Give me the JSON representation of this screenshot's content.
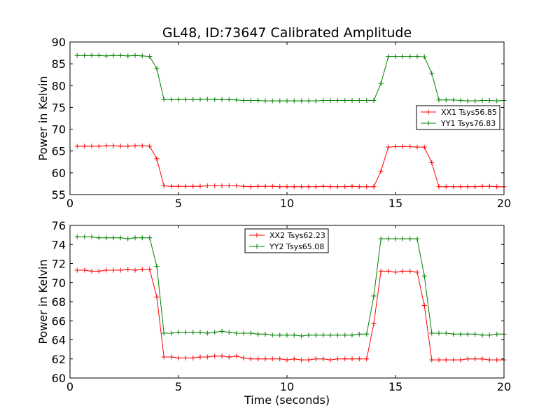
{
  "figure_title": "GL48, ID:73647 Calibrated Amplitude",
  "colors": {
    "red": "#ff0000",
    "green": "#008000"
  },
  "chart_data": [
    {
      "type": "line",
      "title": "GL48, ID:73647 Calibrated Amplitude",
      "xlabel": "",
      "ylabel": "Power in Kelvin",
      "xlim": [
        0,
        20
      ],
      "ylim": [
        55,
        90
      ],
      "xticks": [
        "0",
        "5",
        "10",
        "15",
        "20"
      ],
      "yticks": [
        "55",
        "60",
        "65",
        "70",
        "75",
        "80",
        "85",
        "90"
      ],
      "grid": false,
      "legend_position": "right",
      "x": [
        0.33,
        0.67,
        1.0,
        1.33,
        1.67,
        2.0,
        2.33,
        2.67,
        3.0,
        3.33,
        3.67,
        4.0,
        4.33,
        4.67,
        5.0,
        5.33,
        5.67,
        6.0,
        6.33,
        6.67,
        7.0,
        7.33,
        7.67,
        8.0,
        8.33,
        8.67,
        9.0,
        9.33,
        9.67,
        10.0,
        10.33,
        10.67,
        11.0,
        11.33,
        11.67,
        12.0,
        12.33,
        12.67,
        13.0,
        13.33,
        13.67,
        14.0,
        14.33,
        14.67,
        15.0,
        15.33,
        15.67,
        16.0,
        16.33,
        16.67,
        17.0,
        17.33,
        17.67,
        18.0,
        18.33,
        18.67,
        19.0,
        19.33,
        19.67,
        20.0
      ],
      "series": [
        {
          "name": "XX1 Tsys56.85",
          "color": "#ff0000",
          "values": [
            66.1,
            66.1,
            66.1,
            66.1,
            66.2,
            66.2,
            66.1,
            66.1,
            66.2,
            66.2,
            66.1,
            63.2,
            57.0,
            56.9,
            56.9,
            56.9,
            56.9,
            56.9,
            57.0,
            57.0,
            57.0,
            57.0,
            57.0,
            56.9,
            56.8,
            56.9,
            56.9,
            56.9,
            56.8,
            56.8,
            56.8,
            56.8,
            56.8,
            56.8,
            56.9,
            56.8,
            56.8,
            56.8,
            56.9,
            56.8,
            56.8,
            56.8,
            60.4,
            65.9,
            66.0,
            66.0,
            66.0,
            65.9,
            65.9,
            62.3,
            56.8,
            56.8,
            56.8,
            56.8,
            56.8,
            56.8,
            56.9,
            56.9,
            56.8,
            56.8
          ]
        },
        {
          "name": "YY1 Tsys76.83",
          "color": "#008000",
          "values": [
            86.9,
            86.9,
            86.9,
            86.9,
            86.8,
            86.9,
            86.9,
            86.8,
            86.9,
            86.8,
            86.7,
            83.9,
            76.8,
            76.8,
            76.8,
            76.8,
            76.8,
            76.8,
            76.9,
            76.8,
            76.8,
            76.8,
            76.7,
            76.6,
            76.6,
            76.6,
            76.5,
            76.5,
            76.5,
            76.5,
            76.5,
            76.5,
            76.5,
            76.5,
            76.6,
            76.6,
            76.6,
            76.6,
            76.6,
            76.6,
            76.6,
            76.6,
            80.5,
            86.7,
            86.7,
            86.7,
            86.7,
            86.7,
            86.6,
            82.8,
            76.7,
            76.7,
            76.7,
            76.6,
            76.5,
            76.5,
            76.6,
            76.6,
            76.5,
            76.6
          ]
        }
      ]
    },
    {
      "type": "line",
      "title": "",
      "xlabel": "Time (seconds)",
      "ylabel": "Power in Kelvin",
      "xlim": [
        0,
        20
      ],
      "ylim": [
        60,
        76
      ],
      "xticks": [
        "0",
        "5",
        "10",
        "15",
        "20"
      ],
      "yticks": [
        "60",
        "62",
        "64",
        "66",
        "68",
        "70",
        "72",
        "74",
        "76"
      ],
      "grid": false,
      "legend_position": "top-center",
      "x": [
        0.33,
        0.67,
        1.0,
        1.33,
        1.67,
        2.0,
        2.33,
        2.67,
        3.0,
        3.33,
        3.67,
        4.0,
        4.33,
        4.67,
        5.0,
        5.33,
        5.67,
        6.0,
        6.33,
        6.67,
        7.0,
        7.33,
        7.67,
        8.0,
        8.33,
        8.67,
        9.0,
        9.33,
        9.67,
        10.0,
        10.33,
        10.67,
        11.0,
        11.33,
        11.67,
        12.0,
        12.33,
        12.67,
        13.0,
        13.33,
        13.67,
        14.0,
        14.33,
        14.67,
        15.0,
        15.33,
        15.67,
        16.0,
        16.33,
        16.67,
        17.0,
        17.33,
        17.67,
        18.0,
        18.33,
        18.67,
        19.0,
        19.33,
        19.67,
        20.0
      ],
      "series": [
        {
          "name": "XX2 Tsys62.23",
          "color": "#ff0000",
          "values": [
            71.3,
            71.3,
            71.2,
            71.2,
            71.3,
            71.3,
            71.3,
            71.4,
            71.3,
            71.4,
            71.4,
            68.5,
            62.2,
            62.2,
            62.1,
            62.1,
            62.1,
            62.2,
            62.2,
            62.3,
            62.3,
            62.2,
            62.3,
            62.1,
            62.0,
            62.0,
            62.0,
            62.0,
            62.0,
            61.9,
            62.0,
            61.9,
            61.9,
            62.0,
            62.0,
            61.9,
            62.0,
            62.0,
            62.0,
            62.0,
            62.0,
            65.7,
            71.2,
            71.2,
            71.1,
            71.2,
            71.2,
            71.1,
            67.6,
            61.9,
            61.9,
            61.9,
            61.9,
            61.9,
            62.0,
            62.0,
            62.0,
            61.9,
            61.9,
            61.9
          ]
        },
        {
          "name": "YY2 Tsys65.08",
          "color": "#008000",
          "values": [
            74.8,
            74.8,
            74.8,
            74.7,
            74.7,
            74.7,
            74.7,
            74.6,
            74.7,
            74.7,
            74.7,
            71.7,
            64.7,
            64.7,
            64.8,
            64.8,
            64.8,
            64.8,
            64.7,
            64.8,
            64.9,
            64.8,
            64.7,
            64.7,
            64.7,
            64.6,
            64.6,
            64.5,
            64.5,
            64.5,
            64.5,
            64.4,
            64.5,
            64.5,
            64.5,
            64.5,
            64.5,
            64.5,
            64.5,
            64.6,
            64.6,
            68.6,
            74.6,
            74.6,
            74.6,
            74.6,
            74.6,
            74.6,
            70.7,
            64.7,
            64.7,
            64.7,
            64.6,
            64.6,
            64.6,
            64.6,
            64.5,
            64.5,
            64.6,
            64.6
          ]
        }
      ]
    }
  ]
}
